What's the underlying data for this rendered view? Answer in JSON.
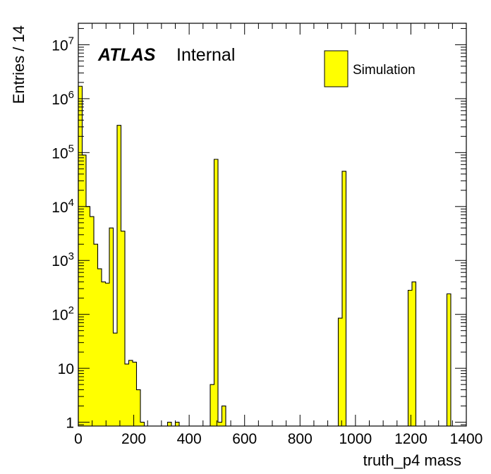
{
  "chart_data": {
    "type": "bar",
    "histogram_style": "step-filled",
    "fill_color": "#ffff00",
    "edge_color": "#000000",
    "bin_width": 14,
    "x_label": "truth_p4 mass",
    "y_label": "Entries / 14",
    "x_range": [
      0,
      1400
    ],
    "y_range": [
      0.85,
      25000000
    ],
    "y_scale": "log",
    "x_ticks": [
      0,
      200,
      400,
      600,
      800,
      1000,
      1200,
      1400
    ],
    "y_ticks": [
      {
        "value": 1,
        "label": "1"
      },
      {
        "value": 10,
        "label": "10"
      },
      {
        "value": 100,
        "label": "10",
        "sup": "2"
      },
      {
        "value": 1000,
        "label": "10",
        "sup": "3"
      },
      {
        "value": 10000,
        "label": "10",
        "sup": "4"
      },
      {
        "value": 100000,
        "label": "10",
        "sup": "5"
      },
      {
        "value": 1000000,
        "label": "10",
        "sup": "6"
      },
      {
        "value": 10000000,
        "label": "10",
        "sup": "7"
      }
    ],
    "bins": [
      {
        "x": 0,
        "value": 1700000
      },
      {
        "x": 14,
        "value": 90000
      },
      {
        "x": 28,
        "value": 10000
      },
      {
        "x": 42,
        "value": 6500
      },
      {
        "x": 56,
        "value": 2000
      },
      {
        "x": 70,
        "value": 700
      },
      {
        "x": 84,
        "value": 400
      },
      {
        "x": 98,
        "value": 380
      },
      {
        "x": 112,
        "value": 4000
      },
      {
        "x": 126,
        "value": 45
      },
      {
        "x": 140,
        "value": 320000
      },
      {
        "x": 154,
        "value": 3500
      },
      {
        "x": 168,
        "value": 12
      },
      {
        "x": 182,
        "value": 14
      },
      {
        "x": 196,
        "value": 13
      },
      {
        "x": 210,
        "value": 4
      },
      {
        "x": 224,
        "value": 1
      },
      {
        "x": 322,
        "value": 1
      },
      {
        "x": 350,
        "value": 1
      },
      {
        "x": 476,
        "value": 5
      },
      {
        "x": 490,
        "value": 75000
      },
      {
        "x": 504,
        "value": 1
      },
      {
        "x": 518,
        "value": 2
      },
      {
        "x": 938,
        "value": 85
      },
      {
        "x": 952,
        "value": 45000
      },
      {
        "x": 1190,
        "value": 280
      },
      {
        "x": 1204,
        "value": 400
      },
      {
        "x": 1330,
        "value": 240
      }
    ],
    "label_atlas": "ATLAS",
    "label_status": "Internal",
    "legend": {
      "position": "top-right",
      "entries": [
        {
          "label": "Simulation",
          "color": "#ffff00"
        }
      ]
    },
    "grid": false
  }
}
